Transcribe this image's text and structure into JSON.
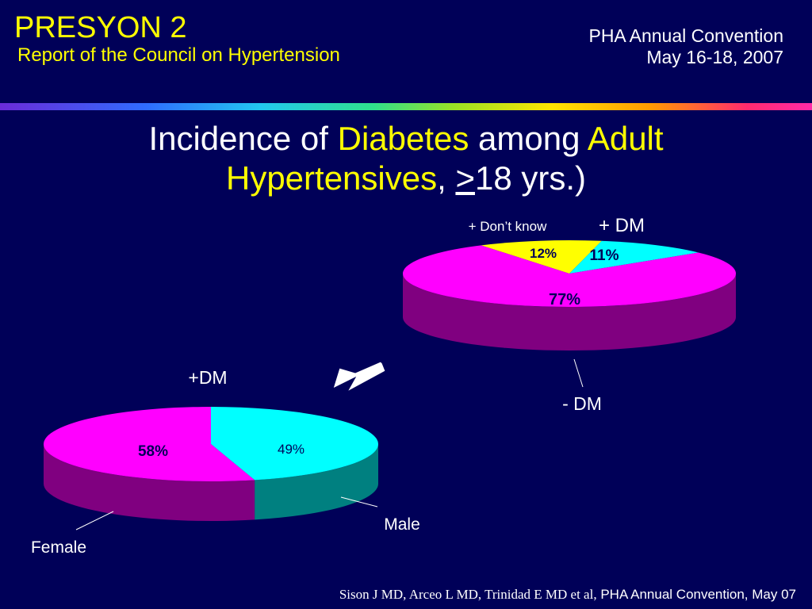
{
  "header": {
    "title": "PRESYON 2",
    "subtitle": "Report of the Council on Hypertension",
    "event_name": "PHA Annual Convention",
    "event_dates": "May 16-18, 2007"
  },
  "main": {
    "title_part1": "Incidence of ",
    "title_hl1": "Diabetes",
    "title_part2": " among ",
    "title_hl2": "Adult",
    "title_hl3": "Hypertensives",
    "title_part3": ", ",
    "title_ge": ">",
    "title_part4": "18 yrs.)"
  },
  "colors": {
    "background": "#000058",
    "highlight": "#ffff00",
    "magenta": "#ff00ff",
    "magenta_side": "#800080",
    "cyan": "#00ffff",
    "teal_side": "#008080",
    "yellow": "#ffff00"
  },
  "chart_data": [
    {
      "type": "pie",
      "title": "",
      "slices": [
        {
          "label": "+ DM",
          "value": 11,
          "value_label": "11%",
          "color": "#00ffff"
        },
        {
          "label": "- DM",
          "value": 77,
          "value_label": "77%",
          "color": "#ff00ff"
        },
        {
          "label": "+ Don’t know",
          "value": 12,
          "value_label": "12%",
          "color": "#ffff00"
        }
      ],
      "style": "3d"
    },
    {
      "type": "pie",
      "title": "+DM",
      "slices": [
        {
          "label": "Male",
          "value": 49,
          "value_label": "49%",
          "color": "#00ffff"
        },
        {
          "label": "Female",
          "value": 58,
          "value_label": "58%",
          "color": "#ff00ff"
        }
      ],
      "style": "3d"
    }
  ],
  "footer": {
    "authors": "Sison J MD, Arceo L MD, Trinidad E MD et al,",
    "event": "PHA Annual Convention, May 07"
  }
}
